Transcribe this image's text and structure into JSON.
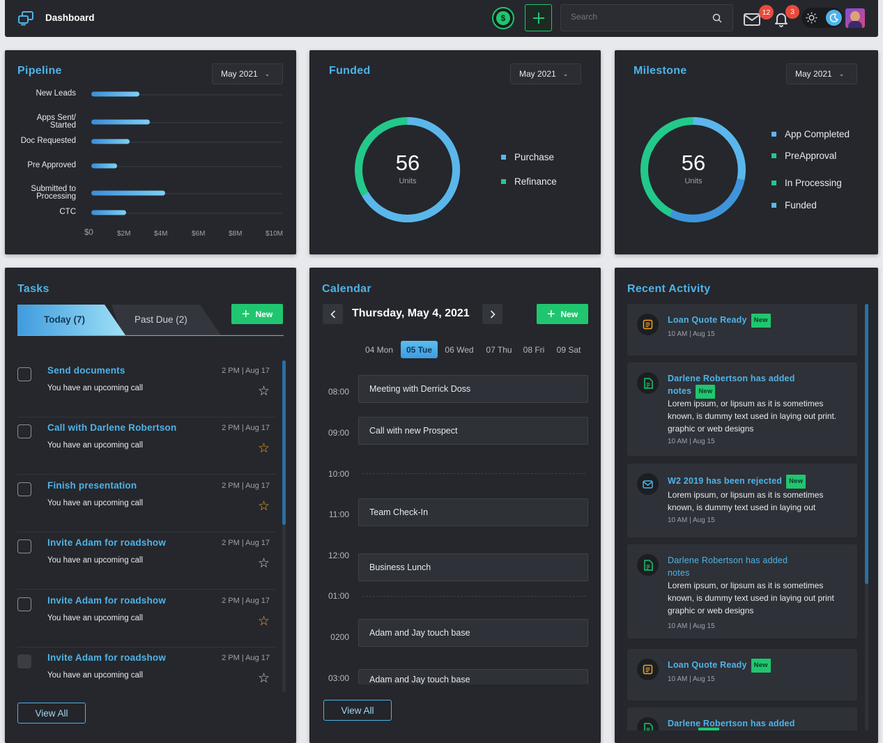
{
  "header": {
    "title": "Dashboard",
    "search_placeholder": "Search",
    "mail_count": "12",
    "bell_count": "3"
  },
  "pipeline": {
    "title": "Pipeline",
    "period": "May 2021",
    "rows": [
      {
        "label": "New Leads",
        "value_m": 2.6
      },
      {
        "label": "Apps Sent/\nStarted",
        "value_m": 3.2
      },
      {
        "label": "Doc Requested",
        "value_m": 2.1
      },
      {
        "label": "Pre Approved",
        "value_m": 1.4
      },
      {
        "label": "Submitted to\nProcessing",
        "value_m": 4.0
      },
      {
        "label": "CTC",
        "value_m": 1.9
      }
    ],
    "ticks": [
      "$0",
      "$2M",
      "$4M",
      "$6M",
      "$8M",
      "$10M"
    ]
  },
  "funded": {
    "title": "Funded",
    "period": "May 2021",
    "total": "56",
    "unit": "Units",
    "legend": [
      {
        "label": "Purchase",
        "color": "#5bb6ec"
      },
      {
        "label": "Refinance",
        "color": "#22c98a"
      }
    ]
  },
  "milestone": {
    "title": "Milestone",
    "period": "May 2021",
    "total": "56",
    "unit": "Units",
    "legend": [
      {
        "label": "App Completed",
        "color": "#5bb6ec"
      },
      {
        "label": "PreApproval",
        "color": "#22c98a"
      },
      {
        "label": "In Processing",
        "color": "#22c98a"
      },
      {
        "label": "Funded",
        "color": "#5bb6ec"
      }
    ]
  },
  "tasks": {
    "title": "Tasks",
    "tab_today": "Today (7)",
    "tab_past": "Past Due (2)",
    "new_label": "New",
    "view_all": "View All",
    "items": [
      {
        "title": "Send documents",
        "sub": "You have an upcoming call",
        "time": "2 PM | Aug 17",
        "starred": false
      },
      {
        "title": "Call with Darlene Robertson",
        "sub": "You have an upcoming call",
        "time": "2 PM | Aug 17",
        "starred": true
      },
      {
        "title": "Finish presentation",
        "sub": "You have an upcoming call",
        "time": "2 PM | Aug 17",
        "starred": true
      },
      {
        "title": "Invite Adam for roadshow",
        "sub": "You have an upcoming call",
        "time": "2 PM | Aug 17",
        "starred": false
      },
      {
        "title": "Invite Adam for roadshow",
        "sub": "You have an upcoming call",
        "time": "2 PM | Aug 17",
        "starred": true
      },
      {
        "title": "Invite Adam for roadshow",
        "sub": "You have an upcoming call",
        "time": "2 PM | Aug 17",
        "starred": false
      }
    ]
  },
  "calendar": {
    "title": "Calendar",
    "date_label": "Thursday, May 4, 2021",
    "new_label": "New",
    "view_all": "View All",
    "days": [
      "04 Mon",
      "05 Tue",
      "06 Wed",
      "07 Thu",
      "08 Fri",
      "09 Sat"
    ],
    "hours": [
      "08:00",
      "09:00",
      "10:00",
      "11:00",
      "12:00",
      "01:00",
      "0200",
      "03:00"
    ],
    "events": [
      "Meeting with Derrick Doss",
      "Call with new Prospect",
      "Team Check-In",
      "Business Lunch",
      "Adam and Jay touch base",
      "Adam and Jay touch base"
    ]
  },
  "activity": {
    "title": "Recent Activity",
    "badge": "New",
    "items": [
      {
        "title": "Loan Quote Ready",
        "time": "10 AM | Aug 15"
      },
      {
        "title": "Darlene Robertson has added",
        "title2": "notes",
        "body": "Lorem ipsum, or lipsum as it is sometimes known, is dummy text used in laying out print. graphic or web designs",
        "time": "10 AM | Aug 15"
      },
      {
        "title": "W2 2019 has been rejected",
        "body": "Lorem ipsum, or lipsum as it is sometimes known, is dummy text used in laying out",
        "time": "10 AM | Aug 15"
      },
      {
        "title": "Darlene Robertson has added",
        "title2": "notes",
        "body": "Lorem ipsum, or lipsum as it is sometimes known, is dummy text used in laying out print graphic or web designs",
        "time": "10 AM | Aug 15"
      },
      {
        "title": "Loan Quote Ready",
        "time": "10 AM | Aug 15"
      },
      {
        "title": "Darlene Robertson has added"
      }
    ]
  }
}
